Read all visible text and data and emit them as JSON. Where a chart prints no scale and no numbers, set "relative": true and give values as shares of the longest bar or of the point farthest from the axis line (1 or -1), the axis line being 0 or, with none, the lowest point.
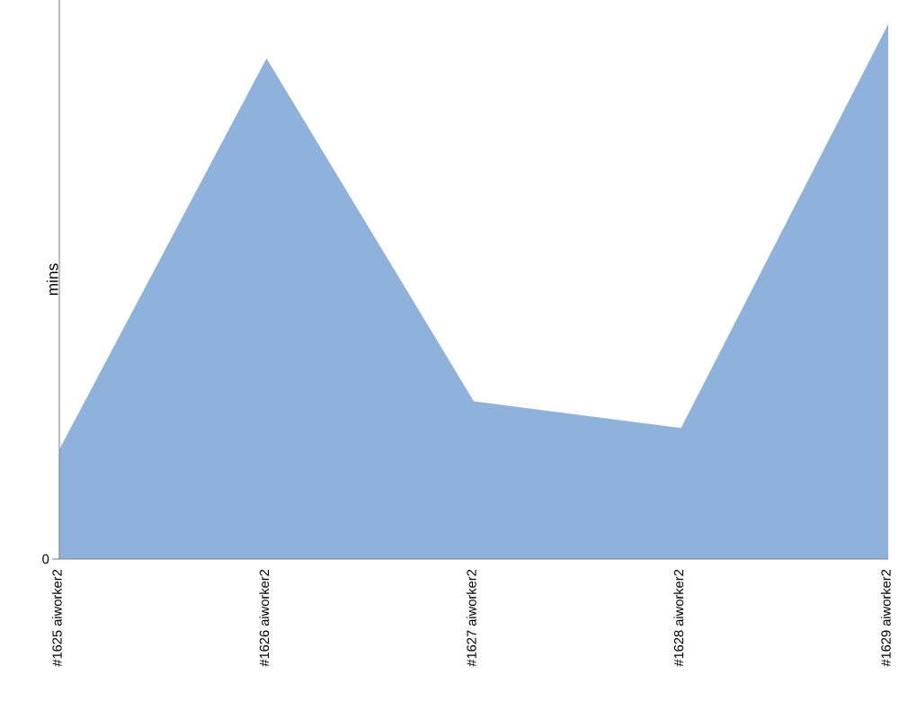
{
  "chart_data": {
    "type": "area",
    "ylabel": "mins",
    "relative": true,
    "annotations": [
      "0"
    ],
    "categories": [
      "#1625 aiworker2",
      "#1626 aiworker2",
      "#1627 aiworker2",
      "#1628 aiworker2",
      "#1629 aiworker2"
    ],
    "values": [
      0.205,
      0.936,
      0.295,
      0.245,
      1
    ],
    "color": "#8fb2dc",
    "grid": false
  }
}
